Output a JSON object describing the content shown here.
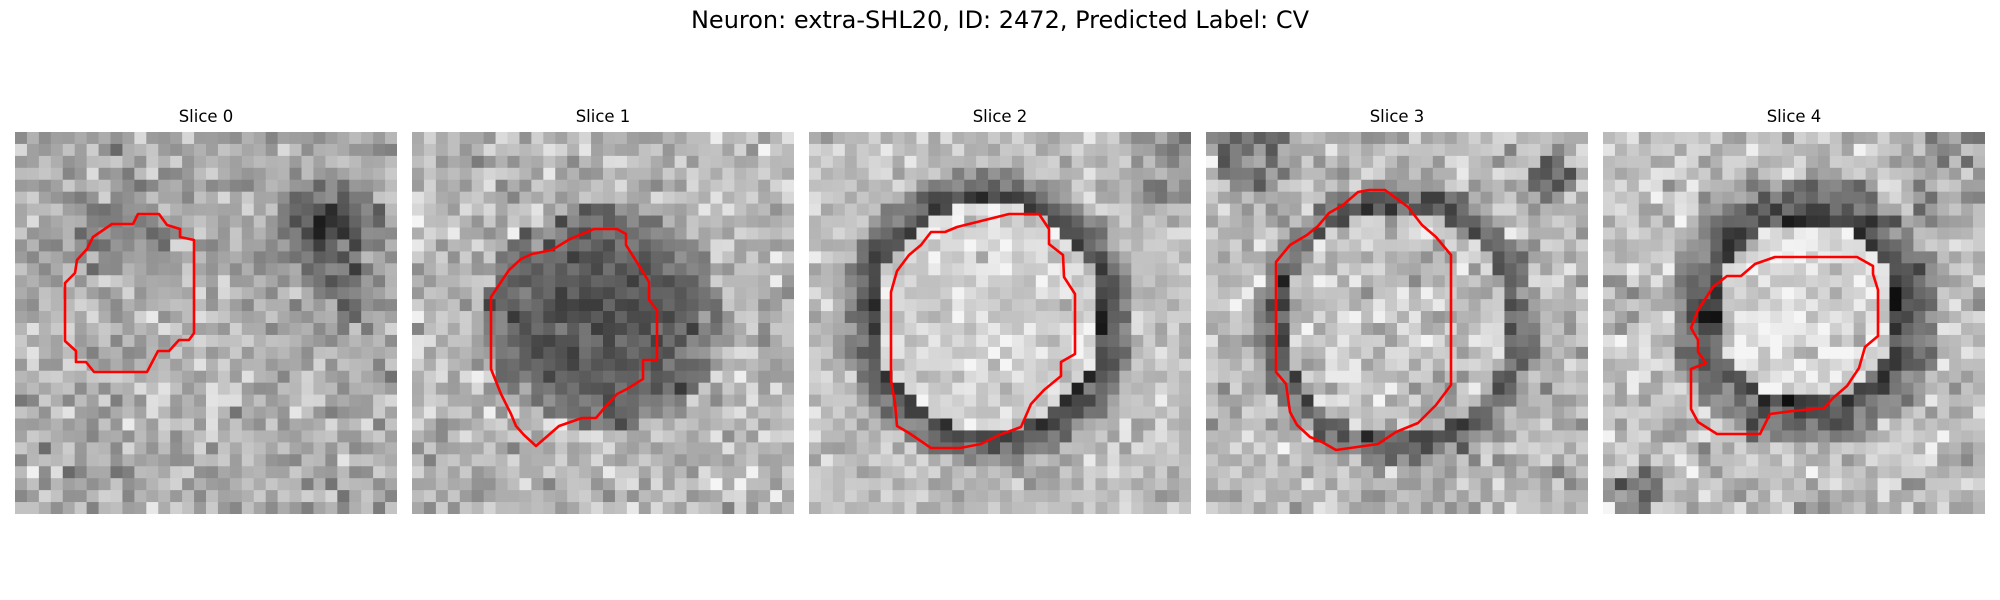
{
  "figure": {
    "title": "Neuron: extra-SHL20, ID: 2472, Predicted Label: CV"
  },
  "panels": [
    {
      "label": "Slice 0"
    },
    {
      "label": "Slice 1"
    },
    {
      "label": "Slice 2"
    },
    {
      "label": "Slice 3"
    },
    {
      "label": "Slice 4"
    }
  ],
  "colors": {
    "contour": "#ff0000"
  }
}
